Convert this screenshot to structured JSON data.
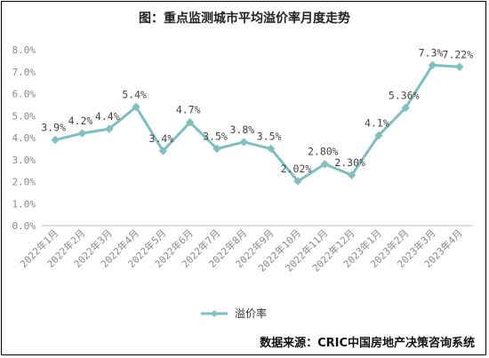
{
  "title": "图：重点监测城市平均溢价率月度走势",
  "source": "数据来源：CRIC中国房地产决策咨询系统",
  "colors": {
    "series": "#7fbfc0",
    "axis": "#8a8a8a",
    "text": "#444444"
  },
  "chart_data": {
    "type": "line",
    "title": "图：重点监测城市平均溢价率月度走势",
    "categories": [
      "2022年1月",
      "2022年2月",
      "2022年3月",
      "2022年4月",
      "2022年5月",
      "2022年6月",
      "2022年7月",
      "2022年8月",
      "2022年9月",
      "2022年10月",
      "2022年11月",
      "2022年12月",
      "2023年1月",
      "2023年2月",
      "2023年3月",
      "2023年4月"
    ],
    "series": [
      {
        "name": "溢价率",
        "values": [
          3.9,
          4.2,
          4.4,
          5.4,
          3.4,
          4.7,
          3.5,
          3.8,
          3.5,
          2.02,
          2.8,
          2.3,
          4.1,
          5.36,
          7.3,
          7.22
        ],
        "labels": [
          "3.9%",
          "4.2%",
          "4.4%",
          "5.4%",
          "3.4%",
          "4.7%",
          "3.5%",
          "3.8%",
          "3.5%",
          "2.02%",
          "2.80%",
          "2.30%",
          "4.1%",
          "5.36%",
          "7.3%",
          "7.22%"
        ]
      }
    ],
    "y_ticks": [
      "0.0%",
      "1.0%",
      "2.0%",
      "3.0%",
      "4.0%",
      "5.0%",
      "6.0%",
      "7.0%",
      "8.0%"
    ],
    "ylim": [
      0,
      8
    ],
    "grid": false,
    "legend_position": "bottom"
  }
}
